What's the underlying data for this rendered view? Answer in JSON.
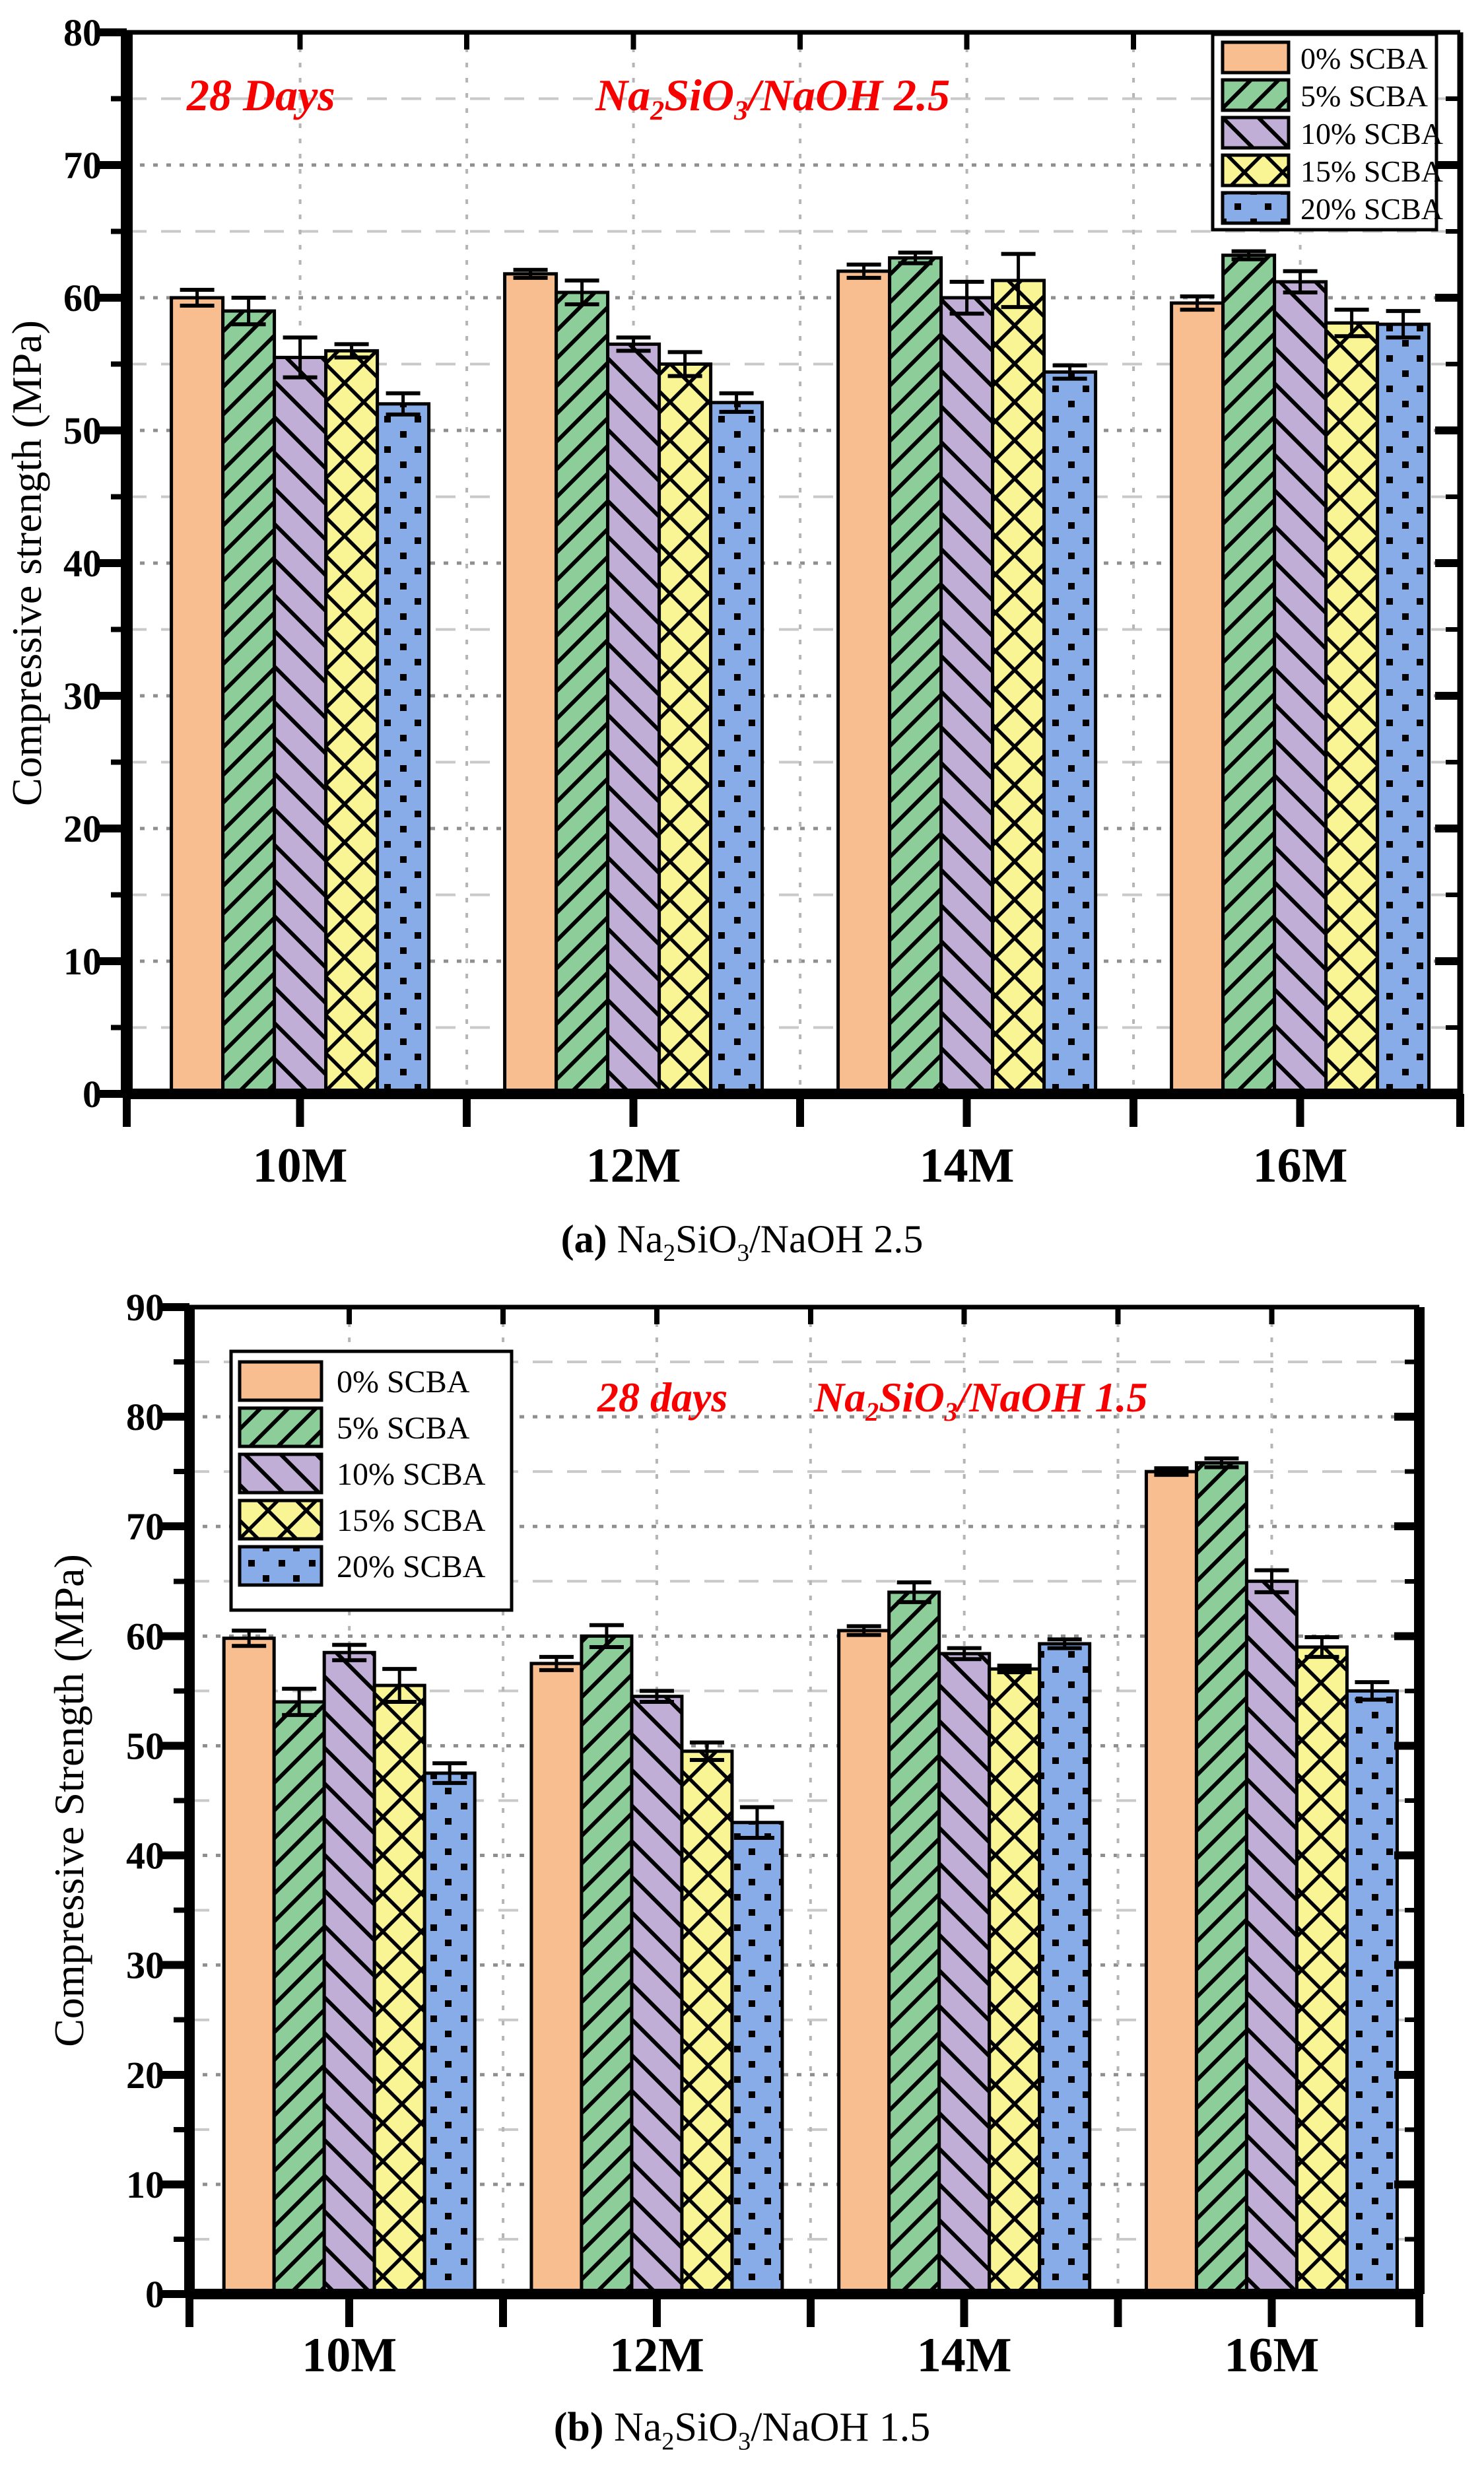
{
  "figure": {
    "background": "#FFFFFF",
    "annotation_color": "#F60000",
    "bar_edge_color": "#000000",
    "grid_major_color": "#8F8F8F",
    "grid_minor_color": "#C9C9C9"
  },
  "chart_data": [
    {
      "id": "a",
      "type": "bar",
      "ylabel": "Compressive strength (MPa)",
      "ylim": [
        0,
        80
      ],
      "ytick_step": 10,
      "minor_step": 5,
      "grid": "on",
      "legend_position": "top-right",
      "categories": [
        "10M",
        "12M",
        "14M",
        "16M"
      ],
      "annotations": [
        {
          "segments": [
            {
              "t": "28 Days"
            }
          ]
        },
        {
          "segments": [
            {
              "t": "Na"
            },
            {
              "s": "2"
            },
            {
              "t": "SiO"
            },
            {
              "s": "3"
            },
            {
              "t": "/NaOH 2.5"
            }
          ]
        }
      ],
      "caption": {
        "bold": "(a)",
        "segments": [
          {
            "t": " Na"
          },
          {
            "s": "2"
          },
          {
            "t": "SiO"
          },
          {
            "s": "3"
          },
          {
            "t": "/NaOH 2.5"
          }
        ]
      },
      "series": [
        {
          "name": "0% SCBA",
          "color": "#F8BE8F",
          "hatch": "solid",
          "values": [
            60.0,
            61.8,
            62.0,
            59.6
          ],
          "errors": [
            0.6,
            0.3,
            0.5,
            0.5
          ]
        },
        {
          "name": "5% SCBA",
          "color": "#8DCD99",
          "hatch": "diagonal-forward",
          "values": [
            59.0,
            60.4,
            63.0,
            63.2
          ],
          "errors": [
            1.0,
            0.9,
            0.4,
            0.3
          ]
        },
        {
          "name": "10% SCBA",
          "color": "#C0AED6",
          "hatch": "diagonal-back",
          "values": [
            55.5,
            56.5,
            60.0,
            61.2
          ],
          "errors": [
            1.5,
            0.5,
            1.2,
            0.8
          ]
        },
        {
          "name": "15% SCBA",
          "color": "#FAF594",
          "hatch": "crosshatch",
          "values": [
            56.0,
            55.0,
            61.3,
            58.1
          ],
          "errors": [
            0.5,
            0.9,
            2.0,
            1.0
          ]
        },
        {
          "name": "20% SCBA",
          "color": "#87ACE8",
          "hatch": "dots",
          "values": [
            52.0,
            52.1,
            54.4,
            58.0
          ],
          "errors": [
            0.8,
            0.7,
            0.5,
            1.0
          ]
        }
      ]
    },
    {
      "id": "b",
      "type": "bar",
      "ylabel": "Compressive Strength (MPa)",
      "ylim": [
        0,
        90
      ],
      "ytick_step": 10,
      "minor_step": 5,
      "grid": "on",
      "legend_position": "top-left",
      "categories": [
        "10M",
        "12M",
        "14M",
        "16M"
      ],
      "annotations": [
        {
          "segments": [
            {
              "t": "28 days"
            }
          ]
        },
        {
          "segments": [
            {
              "t": "Na"
            },
            {
              "s": "2"
            },
            {
              "t": "SiO"
            },
            {
              "s": "3"
            },
            {
              "t": "/NaOH 1.5"
            }
          ]
        }
      ],
      "caption": {
        "bold": "(b)",
        "segments": [
          {
            "t": " Na"
          },
          {
            "s": "2"
          },
          {
            "t": "SiO"
          },
          {
            "s": "3"
          },
          {
            "t": "/NaOH 1.5"
          }
        ]
      },
      "series": [
        {
          "name": "0% SCBA",
          "color": "#F8BE8F",
          "hatch": "solid",
          "values": [
            59.8,
            57.5,
            60.5,
            75.0
          ],
          "errors": [
            0.7,
            0.6,
            0.4,
            0.3
          ]
        },
        {
          "name": "5% SCBA",
          "color": "#8DCD99",
          "hatch": "diagonal-forward",
          "values": [
            54.0,
            60.0,
            64.0,
            75.8
          ],
          "errors": [
            1.2,
            1.0,
            0.9,
            0.4
          ]
        },
        {
          "name": "10% SCBA",
          "color": "#C0AED6",
          "hatch": "diagonal-back",
          "values": [
            58.5,
            54.5,
            58.4,
            65.0
          ],
          "errors": [
            0.7,
            0.5,
            0.5,
            1.0
          ]
        },
        {
          "name": "15% SCBA",
          "color": "#FAF594",
          "hatch": "crosshatch",
          "values": [
            55.5,
            49.5,
            57.0,
            59.0
          ],
          "errors": [
            1.5,
            0.8,
            0.3,
            0.9
          ]
        },
        {
          "name": "20% SCBA",
          "color": "#87ACE8",
          "hatch": "dots",
          "values": [
            47.5,
            43.0,
            59.3,
            55.0
          ],
          "errors": [
            0.9,
            1.4,
            0.4,
            0.8
          ]
        }
      ]
    }
  ]
}
